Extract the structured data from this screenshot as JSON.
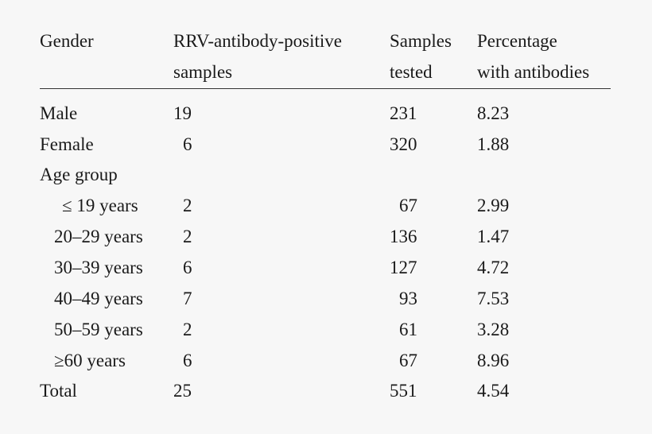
{
  "header": {
    "gender": "Gender",
    "positive_line1": "RRV-antibody-positive",
    "positive_line2": "samples",
    "tested_line1": "Samples",
    "tested_line2": "tested",
    "pct_line1": "Percentage",
    "pct_line2": "with antibodies"
  },
  "rows": [
    {
      "label": "Male",
      "positive": "19",
      "tested": "231",
      "pct": "8.23"
    },
    {
      "label": "Female",
      "positive": "6",
      "tested": "320",
      "pct": "1.88"
    },
    {
      "label": "Age group",
      "positive": "",
      "tested": "",
      "pct": ""
    },
    {
      "label": "≤ 19 years",
      "positive": "2",
      "tested": "67",
      "pct": "2.99"
    },
    {
      "label": "20–29 years",
      "positive": "2",
      "tested": "136",
      "pct": "1.47"
    },
    {
      "label": "30–39 years",
      "positive": "6",
      "tested": "127",
      "pct": "4.72"
    },
    {
      "label": "40–49 years",
      "positive": "7",
      "tested": "93",
      "pct": "7.53"
    },
    {
      "label": "50–59 years",
      "positive": "2",
      "tested": "61",
      "pct": "3.28"
    },
    {
      "label": "≥60 years",
      "positive": "6",
      "tested": "67",
      "pct": "8.96"
    },
    {
      "label": "Total",
      "positive": "25",
      "tested": "551",
      "pct": "4.54"
    }
  ]
}
